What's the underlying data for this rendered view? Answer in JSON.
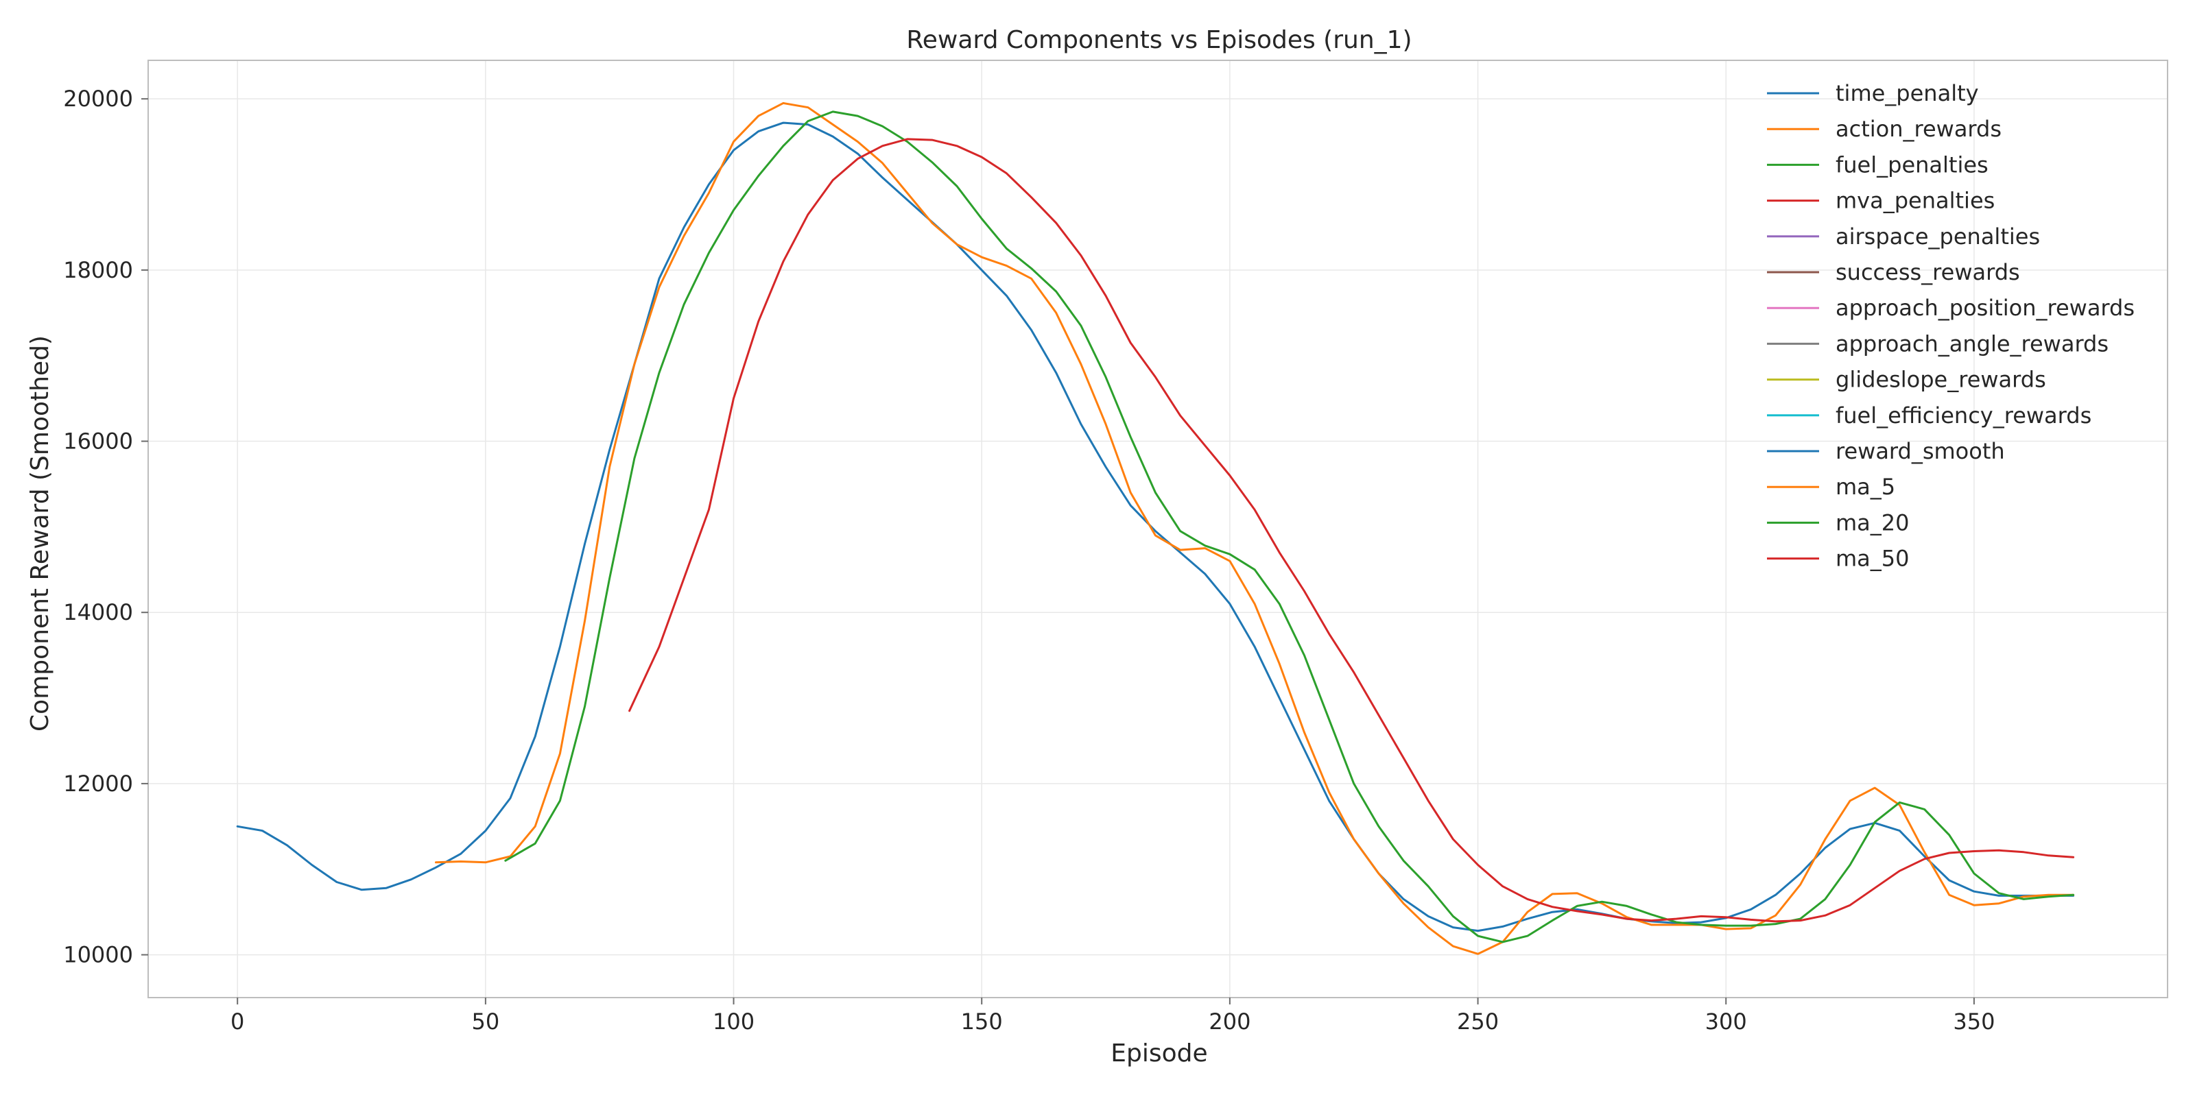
{
  "chart_data": {
    "type": "line",
    "title": "Reward Components vs Episodes (run_1)",
    "xlabel": "Episode",
    "ylabel": "Component Reward (Smoothed)",
    "xlim": [
      -18,
      389
    ],
    "ylim": [
      9500,
      20450
    ],
    "xticks": [
      0,
      50,
      100,
      150,
      200,
      250,
      300,
      350
    ],
    "yticks": [
      10000,
      12000,
      14000,
      16000,
      18000,
      20000
    ],
    "grid": true,
    "legend_position": "top-right",
    "series": [
      {
        "name": "time_penalty",
        "color": "#1f77b4",
        "x": [],
        "y": []
      },
      {
        "name": "action_rewards",
        "color": "#ff7f0e",
        "x": [],
        "y": []
      },
      {
        "name": "fuel_penalties",
        "color": "#2ca02c",
        "x": [],
        "y": []
      },
      {
        "name": "mva_penalties",
        "color": "#d62728",
        "x": [],
        "y": []
      },
      {
        "name": "airspace_penalties",
        "color": "#9467bd",
        "x": [],
        "y": []
      },
      {
        "name": "success_rewards",
        "color": "#8c564b",
        "x": [],
        "y": []
      },
      {
        "name": "approach_position_rewards",
        "color": "#e377c2",
        "x": [],
        "y": []
      },
      {
        "name": "approach_angle_rewards",
        "color": "#7f7f7f",
        "x": [],
        "y": []
      },
      {
        "name": "glideslope_rewards",
        "color": "#bcbd22",
        "x": [],
        "y": []
      },
      {
        "name": "fuel_efficiency_rewards",
        "color": "#17becf",
        "x": [],
        "y": []
      },
      {
        "name": "reward_smooth",
        "color": "#1f77b4",
        "x": [
          0,
          5,
          10,
          15,
          20,
          25,
          30,
          35,
          40,
          45,
          50,
          55,
          60,
          65,
          70,
          75,
          80,
          85,
          90,
          95,
          100,
          105,
          110,
          115,
          120,
          125,
          130,
          135,
          140,
          145,
          150,
          155,
          160,
          165,
          170,
          175,
          180,
          185,
          190,
          195,
          200,
          205,
          210,
          215,
          220,
          225,
          230,
          235,
          240,
          245,
          250,
          255,
          260,
          265,
          270,
          275,
          280,
          285,
          290,
          295,
          300,
          305,
          310,
          315,
          320,
          325,
          330,
          335,
          340,
          345,
          350,
          355,
          360,
          365,
          370
        ],
        "y": [
          11500,
          11450,
          11280,
          11050,
          10850,
          10760,
          10780,
          10880,
          11020,
          11180,
          11450,
          11830,
          12550,
          13600,
          14800,
          15900,
          16900,
          17900,
          18500,
          19000,
          19400,
          19620,
          19720,
          19700,
          19560,
          19360,
          19080,
          18820,
          18560,
          18300,
          18000,
          17700,
          17300,
          16800,
          16200,
          15700,
          15250,
          14950,
          14700,
          14450,
          14100,
          13600,
          13000,
          12400,
          11800,
          11350,
          10950,
          10650,
          10450,
          10320,
          10280,
          10330,
          10420,
          10500,
          10530,
          10480,
          10420,
          10390,
          10370,
          10380,
          10430,
          10530,
          10700,
          10950,
          11250,
          11470,
          11540,
          11450,
          11150,
          10870,
          10740,
          10690,
          10690,
          10690,
          10690
        ]
      },
      {
        "name": "ma_5",
        "color": "#ff7f0e",
        "x": [
          40,
          45,
          50,
          55,
          60,
          65,
          70,
          75,
          80,
          85,
          90,
          95,
          100,
          105,
          110,
          115,
          120,
          125,
          130,
          135,
          140,
          145,
          150,
          155,
          160,
          165,
          170,
          175,
          180,
          185,
          190,
          195,
          200,
          205,
          210,
          215,
          220,
          225,
          230,
          235,
          240,
          245,
          250,
          255,
          260,
          265,
          270,
          275,
          280,
          285,
          290,
          295,
          300,
          305,
          310,
          315,
          320,
          325,
          330,
          335,
          340,
          345,
          350,
          355,
          360,
          365,
          370
        ],
        "y": [
          11080,
          11090,
          11080,
          11150,
          11500,
          12350,
          13900,
          15700,
          16900,
          17800,
          18400,
          18900,
          19500,
          19800,
          19950,
          19900,
          19700,
          19500,
          19250,
          18900,
          18550,
          18300,
          18150,
          18050,
          17900,
          17500,
          16900,
          16200,
          15400,
          14900,
          14730,
          14750,
          14600,
          14100,
          13400,
          12600,
          11900,
          11350,
          10950,
          10600,
          10320,
          10100,
          10010,
          10150,
          10500,
          10710,
          10720,
          10600,
          10440,
          10350,
          10350,
          10350,
          10300,
          10310,
          10460,
          10820,
          11350,
          11800,
          11950,
          11750,
          11200,
          10700,
          10580,
          10600,
          10680,
          10700,
          10700
        ]
      },
      {
        "name": "ma_20",
        "color": "#2ca02c",
        "x": [
          54,
          60,
          65,
          70,
          75,
          80,
          85,
          90,
          95,
          100,
          105,
          110,
          115,
          120,
          125,
          130,
          135,
          140,
          145,
          150,
          155,
          160,
          165,
          170,
          175,
          180,
          185,
          190,
          195,
          200,
          205,
          210,
          215,
          220,
          225,
          230,
          235,
          240,
          245,
          250,
          255,
          260,
          265,
          270,
          275,
          280,
          285,
          290,
          295,
          300,
          305,
          310,
          315,
          320,
          325,
          330,
          335,
          340,
          345,
          350,
          355,
          360,
          365,
          370
        ],
        "y": [
          11100,
          11300,
          11800,
          12900,
          14400,
          15800,
          16800,
          17600,
          18200,
          18700,
          19100,
          19450,
          19740,
          19850,
          19800,
          19680,
          19500,
          19260,
          18980,
          18600,
          18250,
          18020,
          17750,
          17350,
          16750,
          16050,
          15400,
          14950,
          14780,
          14680,
          14500,
          14100,
          13500,
          12750,
          12000,
          11500,
          11100,
          10800,
          10450,
          10220,
          10150,
          10220,
          10400,
          10570,
          10620,
          10570,
          10470,
          10380,
          10350,
          10340,
          10340,
          10360,
          10420,
          10650,
          11050,
          11550,
          11780,
          11700,
          11400,
          10950,
          10720,
          10650,
          10680,
          10700
        ]
      },
      {
        "name": "ma_50",
        "color": "#d62728",
        "x": [
          79,
          85,
          90,
          95,
          100,
          105,
          110,
          115,
          120,
          125,
          130,
          135,
          140,
          145,
          150,
          155,
          160,
          165,
          170,
          175,
          180,
          185,
          190,
          195,
          200,
          205,
          210,
          215,
          220,
          225,
          230,
          235,
          240,
          245,
          250,
          255,
          260,
          265,
          270,
          275,
          280,
          285,
          290,
          295,
          300,
          305,
          310,
          315,
          320,
          325,
          330,
          335,
          340,
          345,
          350,
          355,
          360,
          365,
          370
        ],
        "y": [
          12850,
          13600,
          14400,
          15200,
          16500,
          17400,
          18100,
          18650,
          19050,
          19300,
          19450,
          19530,
          19520,
          19450,
          19320,
          19130,
          18850,
          18550,
          18170,
          17700,
          17150,
          16750,
          16300,
          15950,
          15600,
          15200,
          14700,
          14250,
          13750,
          13300,
          12800,
          12300,
          11800,
          11350,
          11050,
          10800,
          10650,
          10560,
          10510,
          10470,
          10420,
          10400,
          10420,
          10450,
          10440,
          10410,
          10390,
          10400,
          10460,
          10580,
          10780,
          10980,
          11120,
          11190,
          11210,
          11220,
          11200,
          11160,
          11140
        ]
      }
    ]
  }
}
